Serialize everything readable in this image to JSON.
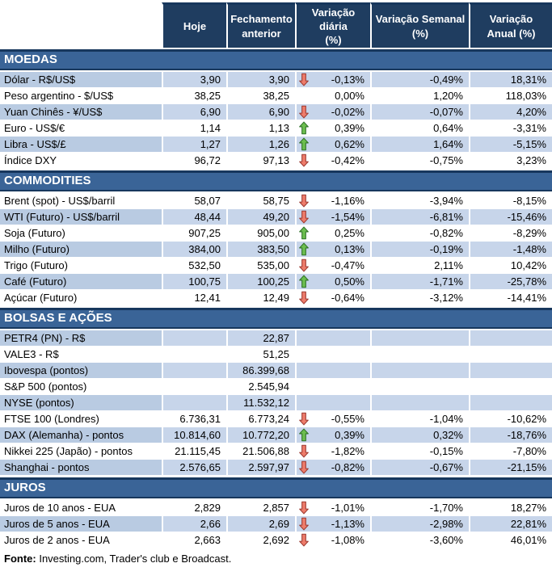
{
  "chart_data": {
    "type": "table",
    "columns": [
      "Hoje",
      "Fechamento\nanterior",
      "Variação diária\n(%)",
      "Variação Semanal\n(%)",
      "Variação\nAnual (%)"
    ],
    "sections": [
      {
        "title": "MOEDAS",
        "rows": [
          {
            "label": "Dólar - R$/US$",
            "hoje": "3,90",
            "fechamento": "3,90",
            "arrow": "down",
            "var_diaria": "-0,13%",
            "var_semanal": "-0,49%",
            "var_anual": "18,31%",
            "shaded": true
          },
          {
            "label": "Peso argentino - $/US$",
            "hoje": "38,25",
            "fechamento": "38,25",
            "arrow": null,
            "var_diaria": "0,00%",
            "var_semanal": "1,20%",
            "var_anual": "118,03%",
            "shaded": false
          },
          {
            "label": "Yuan Chinês - ¥/US$",
            "hoje": "6,90",
            "fechamento": "6,90",
            "arrow": "down",
            "var_diaria": "-0,02%",
            "var_semanal": "-0,07%",
            "var_anual": "4,20%",
            "shaded": true
          },
          {
            "label": "Euro - US$/€",
            "hoje": "1,14",
            "fechamento": "1,13",
            "arrow": "up",
            "var_diaria": "0,39%",
            "var_semanal": "0,64%",
            "var_anual": "-3,31%",
            "shaded": false
          },
          {
            "label": "Libra - US$/£",
            "hoje": "1,27",
            "fechamento": "1,26",
            "arrow": "up",
            "var_diaria": "0,62%",
            "var_semanal": "1,64%",
            "var_anual": "-5,15%",
            "shaded": true
          },
          {
            "label": "Índice DXY",
            "hoje": "96,72",
            "fechamento": "97,13",
            "arrow": "down",
            "var_diaria": "-0,42%",
            "var_semanal": "-0,75%",
            "var_anual": "3,23%",
            "shaded": false
          }
        ]
      },
      {
        "title": "COMMODITIES",
        "rows": [
          {
            "label": "Brent (spot) - US$/barril",
            "hoje": "58,07",
            "fechamento": "58,75",
            "arrow": "down",
            "var_diaria": "-1,16%",
            "var_semanal": "-3,94%",
            "var_anual": "-8,15%",
            "shaded": false
          },
          {
            "label": "WTI (Futuro) - US$/barril",
            "hoje": "48,44",
            "fechamento": "49,20",
            "arrow": "down",
            "var_diaria": "-1,54%",
            "var_semanal": "-6,81%",
            "var_anual": "-15,46%",
            "shaded": true
          },
          {
            "label": "Soja (Futuro)",
            "hoje": "907,25",
            "fechamento": "905,00",
            "arrow": "up",
            "var_diaria": "0,25%",
            "var_semanal": "-0,82%",
            "var_anual": "-8,29%",
            "shaded": false
          },
          {
            "label": "Milho (Futuro)",
            "hoje": "384,00",
            "fechamento": "383,50",
            "arrow": "up",
            "var_diaria": "0,13%",
            "var_semanal": "-0,19%",
            "var_anual": "-1,48%",
            "shaded": true
          },
          {
            "label": "Trigo (Futuro)",
            "hoje": "532,50",
            "fechamento": "535,00",
            "arrow": "down",
            "var_diaria": "-0,47%",
            "var_semanal": "2,11%",
            "var_anual": "10,42%",
            "shaded": false
          },
          {
            "label": "Café (Futuro)",
            "hoje": "100,75",
            "fechamento": "100,25",
            "arrow": "up",
            "var_diaria": "0,50%",
            "var_semanal": "-1,71%",
            "var_anual": "-25,78%",
            "shaded": true
          },
          {
            "label": "Açúcar (Futuro)",
            "hoje": "12,41",
            "fechamento": "12,49",
            "arrow": "down",
            "var_diaria": "-0,64%",
            "var_semanal": "-3,12%",
            "var_anual": "-14,41%",
            "shaded": false
          }
        ]
      },
      {
        "title": "BOLSAS E AÇÕES",
        "rows": [
          {
            "label": "PETR4 (PN) - R$",
            "hoje": "",
            "fechamento": "22,87",
            "arrow": null,
            "var_diaria": "",
            "var_semanal": "",
            "var_anual": "",
            "shaded": true
          },
          {
            "label": "VALE3 - R$",
            "hoje": "",
            "fechamento": "51,25",
            "arrow": null,
            "var_diaria": "",
            "var_semanal": "",
            "var_anual": "",
            "shaded": false
          },
          {
            "label": "Ibovespa (pontos)",
            "hoje": "",
            "fechamento": "86.399,68",
            "arrow": null,
            "var_diaria": "",
            "var_semanal": "",
            "var_anual": "",
            "shaded": true
          },
          {
            "label": "S&P 500 (pontos)",
            "hoje": "",
            "fechamento": "2.545,94",
            "arrow": null,
            "var_diaria": "",
            "var_semanal": "",
            "var_anual": "",
            "shaded": false
          },
          {
            "label": "NYSE (pontos)",
            "hoje": "",
            "fechamento": "11.532,12",
            "arrow": null,
            "var_diaria": "",
            "var_semanal": "",
            "var_anual": "",
            "shaded": true
          },
          {
            "label": "FTSE 100 (Londres)",
            "hoje": "6.736,31",
            "fechamento": "6.773,24",
            "arrow": "down",
            "var_diaria": "-0,55%",
            "var_semanal": "-1,04%",
            "var_anual": "-10,62%",
            "shaded": false
          },
          {
            "label": "DAX (Alemanha) - pontos",
            "hoje": "10.814,60",
            "fechamento": "10.772,20",
            "arrow": "up",
            "var_diaria": "0,39%",
            "var_semanal": "0,32%",
            "var_anual": "-18,76%",
            "shaded": true
          },
          {
            "label": "Nikkei 225 (Japão) - pontos",
            "hoje": "21.115,45",
            "fechamento": "21.506,88",
            "arrow": "down",
            "var_diaria": "-1,82%",
            "var_semanal": "-0,15%",
            "var_anual": "-7,80%",
            "shaded": false
          },
          {
            "label": "Shanghai - pontos",
            "hoje": "2.576,65",
            "fechamento": "2.597,97",
            "arrow": "down",
            "var_diaria": "-0,82%",
            "var_semanal": "-0,67%",
            "var_anual": "-21,15%",
            "shaded": true
          }
        ]
      },
      {
        "title": "JUROS",
        "rows": [
          {
            "label": "Juros de 10 anos - EUA",
            "hoje": "2,829",
            "fechamento": "2,857",
            "arrow": "down",
            "var_diaria": "-1,01%",
            "var_semanal": "-1,70%",
            "var_anual": "18,27%",
            "shaded": false
          },
          {
            "label": "Juros de 5 anos - EUA",
            "hoje": "2,66",
            "fechamento": "2,69",
            "arrow": "down",
            "var_diaria": "-1,13%",
            "var_semanal": "-2,98%",
            "var_anual": "22,81%",
            "shaded": true
          },
          {
            "label": "Juros de 2 anos - EUA",
            "hoje": "2,663",
            "fechamento": "2,692",
            "arrow": "down",
            "var_diaria": "-1,08%",
            "var_semanal": "-3,60%",
            "var_anual": "46,01%",
            "shaded": false
          }
        ]
      }
    ]
  },
  "footer": {
    "label": "Fonte:",
    "text": " Investing.com, Trader's club e Broadcast."
  },
  "colors": {
    "header_bg": "#1F3D60",
    "section_bg": "#3A6497",
    "border_line": "#17375D",
    "row_shaded_label": "#B9CBE2",
    "row_shaded_cell": "#C7D5EA",
    "row_white": "#FFFFFF",
    "header_text": "#FFFFFF",
    "text": "#000000",
    "up_arrow_fill": "#6CBE4F",
    "up_arrow_stroke": "#2F7228",
    "down_arrow_fill": "#EE7C6B",
    "down_arrow_stroke": "#9C3A31"
  },
  "icons": {
    "up": "up-arrow-icon",
    "down": "down-arrow-icon"
  }
}
